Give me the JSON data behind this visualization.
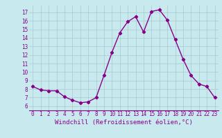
{
  "x": [
    0,
    1,
    2,
    3,
    4,
    5,
    6,
    7,
    8,
    9,
    10,
    11,
    12,
    13,
    14,
    15,
    16,
    17,
    18,
    19,
    20,
    21,
    22,
    23
  ],
  "y": [
    8.3,
    7.9,
    7.8,
    7.8,
    7.1,
    6.7,
    6.4,
    6.5,
    7.0,
    9.6,
    12.3,
    14.6,
    15.9,
    16.5,
    14.7,
    17.1,
    17.3,
    16.1,
    13.8,
    11.5,
    9.6,
    8.6,
    8.3,
    7.0
  ],
  "line_color": "#880088",
  "marker": "D",
  "markersize": 2.2,
  "linewidth": 1.0,
  "bg_color": "#c8eaee",
  "grid_color": "#a8c8cc",
  "xlabel": "Windchill (Refroidissement éolien,°C)",
  "xlabel_color": "#880088",
  "xlabel_fontsize": 6.5,
  "tick_color": "#880088",
  "tick_fontsize": 5.5,
  "ylim": [
    5.5,
    17.8
  ],
  "xlim": [
    -0.5,
    23.5
  ],
  "yticks": [
    6,
    7,
    8,
    9,
    10,
    11,
    12,
    13,
    14,
    15,
    16,
    17
  ],
  "xticks": [
    0,
    1,
    2,
    3,
    4,
    5,
    6,
    7,
    8,
    9,
    10,
    11,
    12,
    13,
    14,
    15,
    16,
    17,
    18,
    19,
    20,
    21,
    22,
    23
  ]
}
